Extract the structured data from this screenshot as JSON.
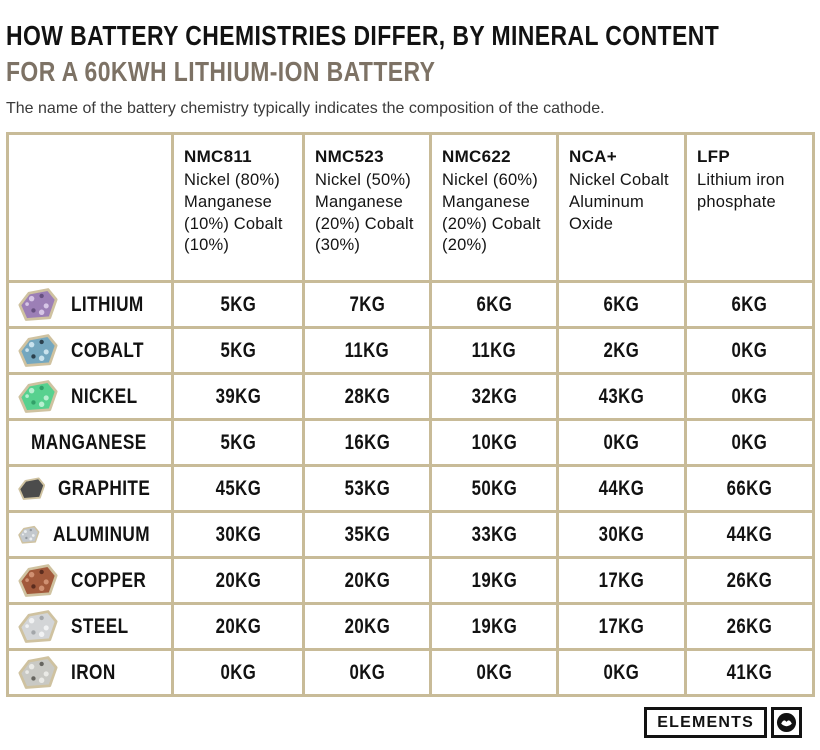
{
  "header": {
    "title": "HOW BATTERY CHEMISTRIES DIFFER, BY MINERAL CONTENT",
    "subtitle": "FOR A 60KWH LITHIUM-ION BATTERY",
    "description": "The name of the battery chemistry typically indicates the composition of the cathode."
  },
  "colors": {
    "table_border": "#c8bb98",
    "subtitle_text": "#7d7265",
    "title_text": "#121212",
    "gem_outline": "#cfc2a0"
  },
  "chart_data": {
    "type": "table",
    "title": "How battery chemistries differ, by mineral content (for a 60kWh lithium-ion battery)",
    "unit": "kg",
    "columns": [
      {
        "code": "NMC811",
        "composition": "Nickel (80%) Manganese (10%) Cobalt (10%)"
      },
      {
        "code": "NMC523",
        "composition": "Nickel (50%) Manganese (20%) Cobalt (30%)"
      },
      {
        "code": "NMC622",
        "composition": "Nickel (60%) Manganese (20%) Cobalt (20%)"
      },
      {
        "code": "NCA+",
        "composition": "Nickel Cobalt Aluminum Oxide"
      },
      {
        "code": "LFP",
        "composition": "Lithium iron phosphate"
      }
    ],
    "rows": [
      {
        "mineral": "LITHIUM",
        "values": [
          "5KG",
          "7KG",
          "6KG",
          "6KG",
          "6KG"
        ],
        "icon": {
          "name": "lithium-mineral-icon",
          "fill": "#9c7fb6",
          "accent": "#e2d2ef",
          "dark": "#5e4878"
        }
      },
      {
        "mineral": "COBALT",
        "values": [
          "5KG",
          "11KG",
          "11KG",
          "2KG",
          "0KG"
        ],
        "icon": {
          "name": "cobalt-mineral-icon",
          "fill": "#74a7bf",
          "accent": "#d8ecf4",
          "dark": "#1f2e38"
        }
      },
      {
        "mineral": "NICKEL",
        "values": [
          "39KG",
          "28KG",
          "32KG",
          "43KG",
          "0KG"
        ],
        "icon": {
          "name": "nickel-mineral-icon",
          "fill": "#57d18f",
          "accent": "#c8f5dc",
          "dark": "#2a9862"
        }
      },
      {
        "mineral": "MANGANESE",
        "values": [
          "5KG",
          "16KG",
          "10KG",
          "0KG",
          "0KG"
        ],
        "icon": {
          "name": "manganese-mineral-icon",
          "fill": "#3b3b3b",
          "accent": "#b9bcc0",
          "dark": "#101010"
        }
      },
      {
        "mineral": "GRAPHITE",
        "values": [
          "45KG",
          "53KG",
          "50KG",
          "44KG",
          "66KG"
        ],
        "icon": {
          "name": "graphite-mineral-icon",
          "fill": "#4c4c4c",
          "accent": "",
          "dark": ""
        }
      },
      {
        "mineral": "ALUMINUM",
        "values": [
          "30KG",
          "35KG",
          "33KG",
          "30KG",
          "44KG"
        ],
        "icon": {
          "name": "aluminum-mineral-icon",
          "fill": "#c3c8cd",
          "accent": "#f2f4f6",
          "dark": "#8a9096"
        }
      },
      {
        "mineral": "COPPER",
        "values": [
          "20KG",
          "20KG",
          "19KG",
          "17KG",
          "26KG"
        ],
        "icon": {
          "name": "copper-mineral-icon",
          "fill": "#a2593b",
          "accent": "#d89a7c",
          "dark": "#4f241a"
        }
      },
      {
        "mineral": "STEEL",
        "values": [
          "20KG",
          "20KG",
          "19KG",
          "17KG",
          "26KG"
        ],
        "icon": {
          "name": "steel-mineral-icon",
          "fill": "#d3d5d7",
          "accent": "#f6f7f8",
          "dark": "#9a9da1"
        }
      },
      {
        "mineral": "IRON",
        "values": [
          "0KG",
          "0KG",
          "0KG",
          "0KG",
          "41KG"
        ],
        "icon": {
          "name": "iron-mineral-icon",
          "fill": "#c9c9c4",
          "accent": "#f0f0ec",
          "dark": "#55534e"
        }
      }
    ]
  },
  "footer": {
    "brand": "ELEMENTS",
    "logo_icon": "visual-capitalist-logo-icon"
  }
}
